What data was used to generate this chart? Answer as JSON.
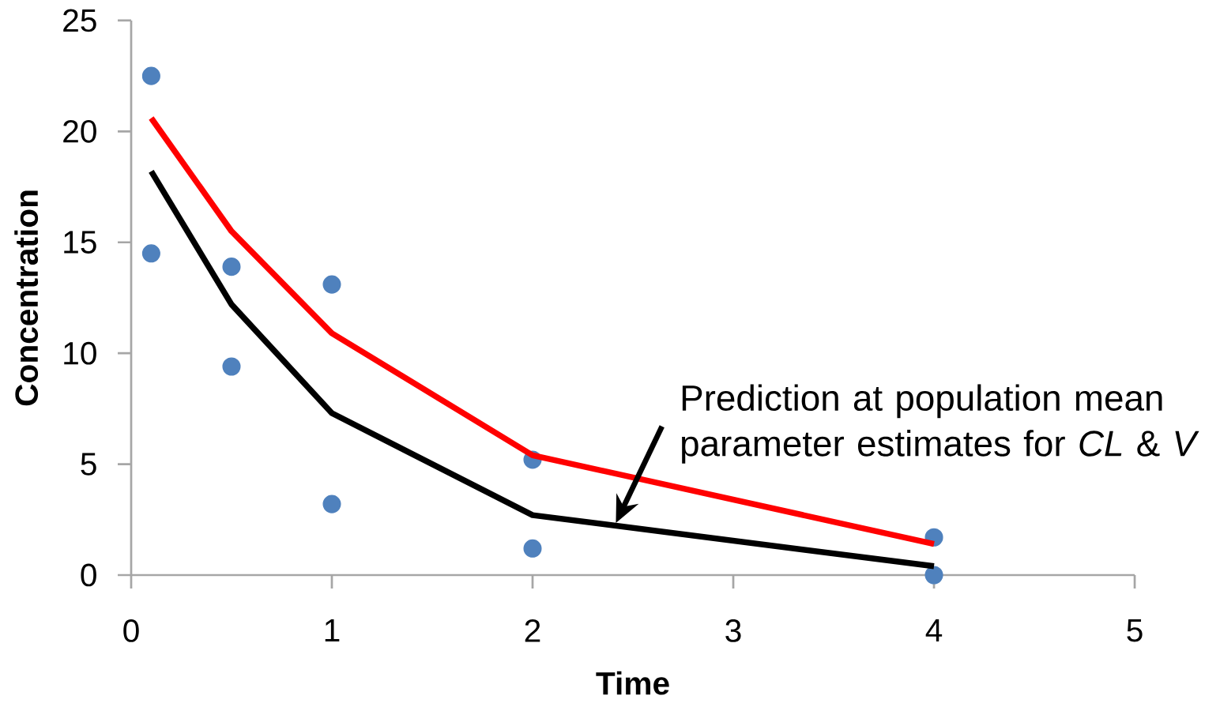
{
  "chart_data": {
    "type": "scatter",
    "xlabel": "Time",
    "ylabel": "Concentration",
    "xlim": [
      0,
      5
    ],
    "ylim": [
      0,
      25
    ],
    "xticks": [
      0,
      1,
      2,
      3,
      4,
      5
    ],
    "yticks": [
      0,
      5,
      10,
      15,
      20,
      25
    ],
    "grid": false,
    "line_style": "solid",
    "series": [
      {
        "color": "#4f81bd",
        "x": [
          0.1,
          0.1,
          0.5,
          0.5,
          1,
          1,
          2,
          2,
          4,
          4
        ],
        "values": [
          22.5,
          14.5,
          13.9,
          9.4,
          13.1,
          3.2,
          5.2,
          1.2,
          1.7,
          0
        ]
      },
      {
        "type": "line",
        "color": "#ff0000",
        "x": [
          0.1,
          0.5,
          1,
          2,
          4
        ],
        "values": [
          20.6,
          15.5,
          10.9,
          5.4,
          1.4
        ]
      },
      {
        "type": "line",
        "color": "#000000",
        "x": [
          0.1,
          0.5,
          1,
          2,
          4
        ],
        "values": [
          18.2,
          12.2,
          7.3,
          2.7,
          0.4
        ]
      }
    ],
    "annotations": [
      "Prediction at population mean parameter estimates for *CL* & *V*"
    ]
  }
}
